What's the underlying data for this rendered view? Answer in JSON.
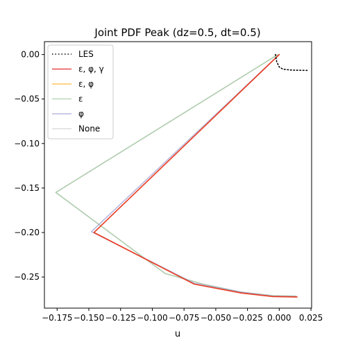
{
  "chart_data": {
    "type": "line",
    "title": "Joint PDF Peak (dz=0.5, dt=0.5)",
    "xlabel": "u",
    "ylabel": "",
    "xlim": [
      -0.185,
      0.0255
    ],
    "ylim": [
      -0.285,
      0.0145
    ],
    "x_ticks": [
      -0.175,
      -0.15,
      -0.125,
      -0.1,
      -0.075,
      -0.05,
      -0.025,
      0.0,
      0.025
    ],
    "x_tick_labels": [
      "−0.175",
      "−0.150",
      "−0.125",
      "−0.100",
      "−0.075",
      "−0.050",
      "−0.025",
      "0.000",
      "0.025"
    ],
    "y_ticks": [
      0.0,
      -0.05,
      -0.1,
      -0.15,
      -0.2,
      -0.25
    ],
    "y_tick_labels": [
      "0.00",
      "−0.05",
      "−0.10",
      "−0.15",
      "−0.20",
      "−0.25"
    ],
    "grid": false,
    "legend_position": "top-left",
    "series": [
      {
        "name": "LES",
        "color": "#000000",
        "style": "dotted",
        "opacity": 1,
        "points": [
          [
            -0.003,
            0.0
          ],
          [
            -0.002,
            -0.008
          ],
          [
            0.0,
            -0.014
          ],
          [
            0.003,
            -0.0165
          ],
          [
            0.01,
            -0.0175
          ],
          [
            0.022,
            -0.0178
          ]
        ]
      },
      {
        "name": "ε, φ, γ",
        "color": "#e41a1c",
        "style": "solid",
        "opacity": 0.8,
        "points": [
          [
            0.0,
            0.0
          ],
          [
            -0.146,
            -0.2
          ],
          [
            -0.067,
            -0.258
          ],
          [
            -0.03,
            -0.268
          ],
          [
            -0.005,
            -0.272
          ],
          [
            0.014,
            -0.2725
          ]
        ]
      },
      {
        "name": "ε, φ",
        "color": "#ffb833",
        "style": "solid",
        "opacity": 0.8,
        "points": [
          [
            0.0,
            0.0
          ],
          [
            -0.146,
            -0.2
          ],
          [
            -0.067,
            -0.258
          ],
          [
            -0.03,
            -0.268
          ],
          [
            -0.005,
            -0.272
          ],
          [
            0.014,
            -0.2725
          ]
        ]
      },
      {
        "name": "ε",
        "color": "#9cc79c",
        "style": "solid",
        "opacity": 0.7,
        "points": [
          [
            -0.001,
            0.0
          ],
          [
            -0.176,
            -0.155
          ],
          [
            -0.09,
            -0.246
          ],
          [
            -0.06,
            -0.258
          ],
          [
            -0.03,
            -0.267
          ],
          [
            -0.005,
            -0.271
          ],
          [
            0.013,
            -0.2715
          ]
        ]
      },
      {
        "name": "φ",
        "color": "#9b9bd1",
        "style": "solid",
        "opacity": 0.7,
        "points": [
          [
            0.0,
            0.0
          ],
          [
            -0.148,
            -0.199
          ],
          [
            -0.067,
            -0.257
          ],
          [
            -0.03,
            -0.267
          ],
          [
            -0.005,
            -0.2715
          ],
          [
            0.014,
            -0.272
          ]
        ]
      },
      {
        "name": "None",
        "color": "#d3d3d3",
        "style": "solid",
        "opacity": 0.8,
        "points": [
          [
            -0.001,
            0.0
          ],
          [
            -0.176,
            -0.155
          ],
          [
            -0.09,
            -0.246
          ],
          [
            -0.06,
            -0.258
          ],
          [
            -0.03,
            -0.267
          ],
          [
            -0.005,
            -0.271
          ],
          [
            0.013,
            -0.2715
          ]
        ]
      }
    ]
  }
}
